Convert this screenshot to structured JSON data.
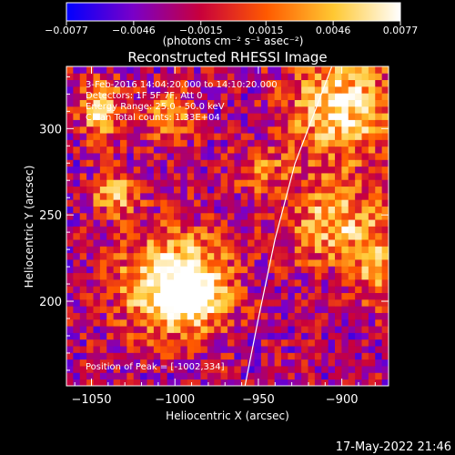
{
  "chart_data": {
    "type": "heatmap",
    "title": "Reconstructed RHESSI Image",
    "xlabel": "Heliocentric X (arcsec)",
    "ylabel": "Heliocentric Y (arcsec)",
    "xlim": [
      -1065,
      -872
    ],
    "ylim": [
      151,
      336
    ],
    "x_ticks": [
      -1050,
      -1000,
      -950,
      -900
    ],
    "y_ticks": [
      200,
      250,
      300
    ],
    "x_tick_labels": [
      "−1050",
      "−1000",
      "−950",
      "−900"
    ],
    "y_tick_labels": [
      "200",
      "250",
      "300"
    ],
    "colorbar": {
      "range": [
        -0.0077,
        0.0077
      ],
      "tick_values": [
        -0.0077,
        -0.0046,
        -0.0015,
        0.0015,
        0.0046,
        0.0077
      ],
      "tick_labels": [
        "−0.0077",
        "−0.0046",
        "−0.0015",
        "0.0015",
        "0.0046",
        "0.0077"
      ],
      "unit_label": "(photons cm⁻² s⁻¹ asec⁻²)",
      "colors": [
        "#0000ff",
        "#7a00c8",
        "#c8003c",
        "#ff5a00",
        "#ffc832",
        "#ffffff"
      ]
    },
    "annotations": {
      "time_range": "3-Feb-2016 14:04:20.000 to 14:10:20.000",
      "detectors": "Detectors: 1F 5F 7F, Att 0",
      "energy": "Energy Range: 25.0 - 50.0 keV",
      "clean": "Clean    Total counts: 1.33E+04",
      "peak": "Position of Peak = [-1002,334]"
    },
    "limb_curve": [
      [
        -958,
        151
      ],
      [
        -950,
        190
      ],
      [
        -940,
        236
      ],
      [
        -928,
        280
      ],
      [
        -913,
        318
      ],
      [
        -906,
        336
      ]
    ],
    "sources": [
      {
        "x": -1000,
        "y": 210,
        "amp": 1.0,
        "sx": 22,
        "sy": 20
      },
      {
        "x": -988,
        "y": 203,
        "amp": 0.5,
        "sx": 10,
        "sy": 10
      },
      {
        "x": -1044,
        "y": 310,
        "amp": 0.7,
        "sx": 9,
        "sy": 12
      },
      {
        "x": -1003,
        "y": 307,
        "amp": 0.5,
        "sx": 11,
        "sy": 10
      },
      {
        "x": -1036,
        "y": 262,
        "amp": 0.55,
        "sx": 10,
        "sy": 9
      },
      {
        "x": -900,
        "y": 313,
        "amp": 0.75,
        "sx": 22,
        "sy": 22
      },
      {
        "x": -905,
        "y": 245,
        "amp": 0.6,
        "sx": 20,
        "sy": 17
      },
      {
        "x": -878,
        "y": 220,
        "amp": 0.5,
        "sx": 10,
        "sy": 16
      },
      {
        "x": -948,
        "y": 275,
        "amp": 0.35,
        "sx": 14,
        "sy": 10
      }
    ],
    "background_level": -0.35,
    "noise": 0.45,
    "grid": false
  },
  "timestamp": "17-May-2022 21:46"
}
